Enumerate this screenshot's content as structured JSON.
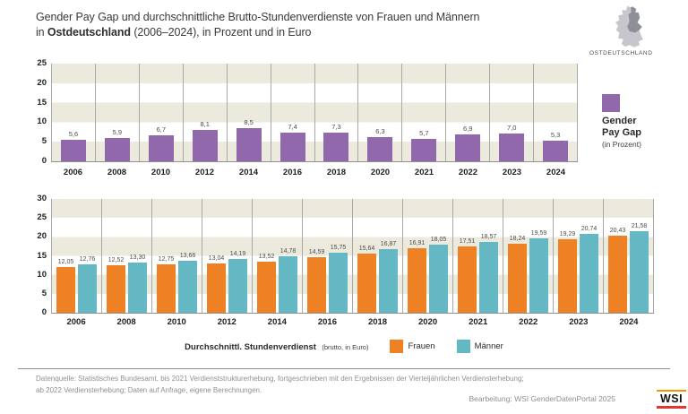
{
  "header": {
    "title_line1": "Gender Pay Gap und durchschnittliche Brutto-Stundenverdienste von Frauen und Männern",
    "title_line2_prefix": "in ",
    "title_line2_bold": "Ostdeutschland",
    "title_line2_rest": " (2006–2024), in Prozent und in Euro",
    "region_label": "OSTDEUTSCHLAND"
  },
  "colors": {
    "gender_pay_gap": "#9168AC",
    "frauen": "#EE8123",
    "maenner": "#63B8C3",
    "stripe_beige": "#ECE9DD",
    "gridline": "#A9A9A9"
  },
  "chart_data": [
    {
      "type": "bar",
      "title": "Gender Pay Gap",
      "subtitle": "(in Prozent)",
      "legend_position": "right",
      "grid": "horizontal-bands",
      "categories": [
        "2006",
        "2008",
        "2010",
        "2012",
        "2014",
        "2016",
        "2018",
        "2020",
        "2021",
        "2022",
        "2023",
        "2024"
      ],
      "values": [
        5.6,
        5.9,
        6.7,
        8.1,
        8.5,
        7.4,
        7.3,
        6.3,
        5.7,
        6.9,
        7.0,
        5.3
      ],
      "labels": [
        "5,6",
        "5,9",
        "6,7",
        "8,1",
        "8,5",
        "7,4",
        "7,3",
        "6,3",
        "5,7",
        "6,9",
        "7,0",
        "5,3"
      ],
      "color": "#9168AC",
      "ylim": [
        0,
        25
      ],
      "ystep": 5
    },
    {
      "type": "bar",
      "title": "Durchschnittl. Stundenverdienst",
      "subtitle": "(brutto, in Euro)",
      "legend_position": "bottom",
      "grid": "horizontal-bands",
      "categories": [
        "2006",
        "2008",
        "2010",
        "2012",
        "2014",
        "2016",
        "2018",
        "2020",
        "2021",
        "2022",
        "2023",
        "2024"
      ],
      "series": [
        {
          "name": "Frauen",
          "color": "#EE8123",
          "values": [
            12.05,
            12.52,
            12.75,
            13.04,
            13.52,
            14.59,
            15.64,
            16.91,
            17.51,
            18.24,
            19.29,
            20.43
          ],
          "labels": [
            "12,05",
            "12,52",
            "12,75",
            "13,04",
            "13,52",
            "14,59",
            "15,64",
            "16,91",
            "17,51",
            "18,24",
            "19,29",
            "20,43"
          ]
        },
        {
          "name": "Männer",
          "color": "#63B8C3",
          "values": [
            12.76,
            13.3,
            13.66,
            14.19,
            14.78,
            15.75,
            16.87,
            18.05,
            18.57,
            19.59,
            20.74,
            21.58
          ],
          "labels": [
            "12,76",
            "13,30",
            "13,66",
            "14,19",
            "14,78",
            "15,75",
            "16,87",
            "18,05",
            "18,57",
            "19,59",
            "20,74",
            "21,58"
          ]
        }
      ],
      "ylim": [
        0,
        30
      ],
      "ystep": 5
    }
  ],
  "footer": {
    "source_line1": "Datenquelle: Statistisches Bundesamt, bis 2021 Verdienststrukturerhebung, fortgeschrieben mit den Ergebnissen der Vierteljährlichen Verdiensterhebung;",
    "source_line2": "ab 2022 Verdiensterhebung; Daten auf Anfrage, eigene Berechnungen.",
    "credit": "Bearbeitung: WSI GenderDatenPortal 2025",
    "logo_text": "WSI"
  }
}
